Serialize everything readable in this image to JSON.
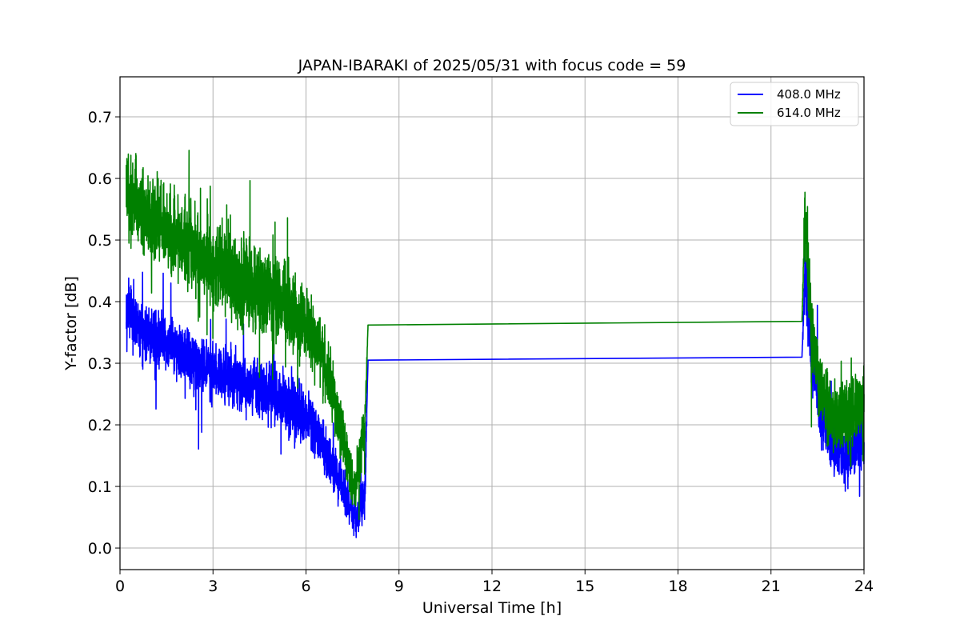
{
  "chart_data": {
    "type": "line",
    "title": "JAPAN-IBARAKI of 2025/05/31 with focus code = 59",
    "xlabel": "Universal Time [h]",
    "ylabel": "Y-factor [dB]",
    "xlim": [
      0,
      24
    ],
    "ylim": [
      -0.035,
      0.765
    ],
    "xticks": [
      0,
      3,
      6,
      9,
      12,
      15,
      18,
      21,
      24
    ],
    "yticks": [
      0.0,
      0.1,
      0.2,
      0.3,
      0.4,
      0.5,
      0.6,
      0.7
    ],
    "xtick_labels": [
      "0",
      "3",
      "6",
      "9",
      "12",
      "15",
      "18",
      "21",
      "24"
    ],
    "ytick_labels": [
      "0.0",
      "0.1",
      "0.2",
      "0.3",
      "0.4",
      "0.5",
      "0.6",
      "0.7"
    ],
    "grid": true,
    "legend_position": "top-right",
    "series": [
      {
        "name": "408.0 MHz",
        "color": "#0000ff",
        "x": [
          0.2,
          0.5,
          1.0,
          1.5,
          2.0,
          2.5,
          3.0,
          3.5,
          4.0,
          4.5,
          5.0,
          5.5,
          6.0,
          6.5,
          7.0,
          7.3,
          7.6,
          7.9,
          8.0,
          22.0,
          22.1,
          22.3,
          22.6,
          23.0,
          23.5,
          24.0
        ],
        "y": [
          0.4,
          0.36,
          0.34,
          0.33,
          0.32,
          0.3,
          0.29,
          0.28,
          0.27,
          0.26,
          0.25,
          0.23,
          0.21,
          0.17,
          0.12,
          0.08,
          0.05,
          0.09,
          0.305,
          0.31,
          0.45,
          0.32,
          0.22,
          0.16,
          0.15,
          0.18
        ],
        "spread": [
          0.05,
          0.07,
          0.06,
          0.06,
          0.06,
          0.06,
          0.06,
          0.06,
          0.06,
          0.06,
          0.06,
          0.06,
          0.06,
          0.05,
          0.05,
          0.05,
          0.04,
          0.05,
          0.0,
          0.0,
          0.08,
          0.07,
          0.06,
          0.06,
          0.06,
          0.06
        ]
      },
      {
        "name": "614.0 MHz",
        "color": "#008000",
        "x": [
          0.2,
          0.5,
          1.0,
          1.5,
          2.0,
          2.5,
          3.0,
          3.5,
          4.0,
          4.5,
          5.0,
          5.5,
          6.0,
          6.5,
          7.0,
          7.3,
          7.6,
          7.9,
          8.0,
          22.0,
          22.1,
          22.3,
          22.6,
          23.0,
          23.5,
          24.0
        ],
        "y": [
          0.58,
          0.56,
          0.54,
          0.52,
          0.5,
          0.48,
          0.46,
          0.44,
          0.43,
          0.42,
          0.41,
          0.39,
          0.36,
          0.31,
          0.22,
          0.15,
          0.09,
          0.2,
          0.362,
          0.368,
          0.55,
          0.36,
          0.26,
          0.21,
          0.22,
          0.24
        ],
        "spread": [
          0.08,
          0.09,
          0.09,
          0.09,
          0.09,
          0.09,
          0.09,
          0.09,
          0.09,
          0.09,
          0.09,
          0.09,
          0.08,
          0.07,
          0.06,
          0.06,
          0.05,
          0.06,
          0.0,
          0.0,
          0.09,
          0.08,
          0.07,
          0.07,
          0.07,
          0.07
        ]
      }
    ]
  }
}
